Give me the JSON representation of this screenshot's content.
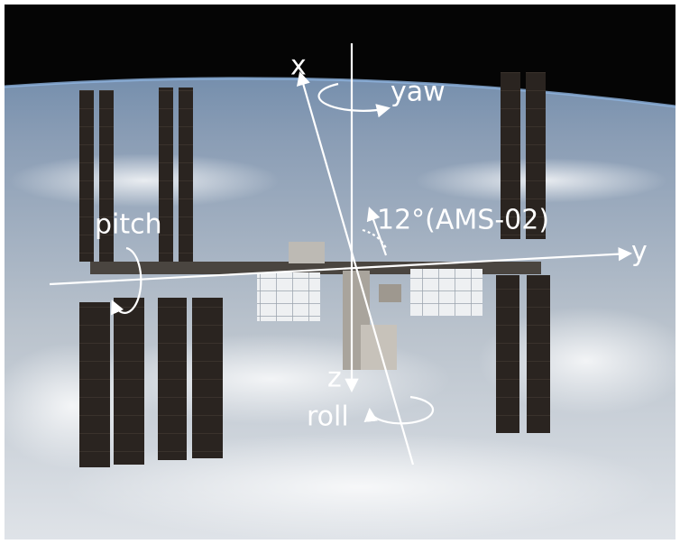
{
  "axes": {
    "x": "x",
    "y": "y",
    "z": "z"
  },
  "rotations": {
    "yaw": "yaw",
    "pitch": "pitch",
    "roll": "roll"
  },
  "annotation": "12°(AMS-02)"
}
